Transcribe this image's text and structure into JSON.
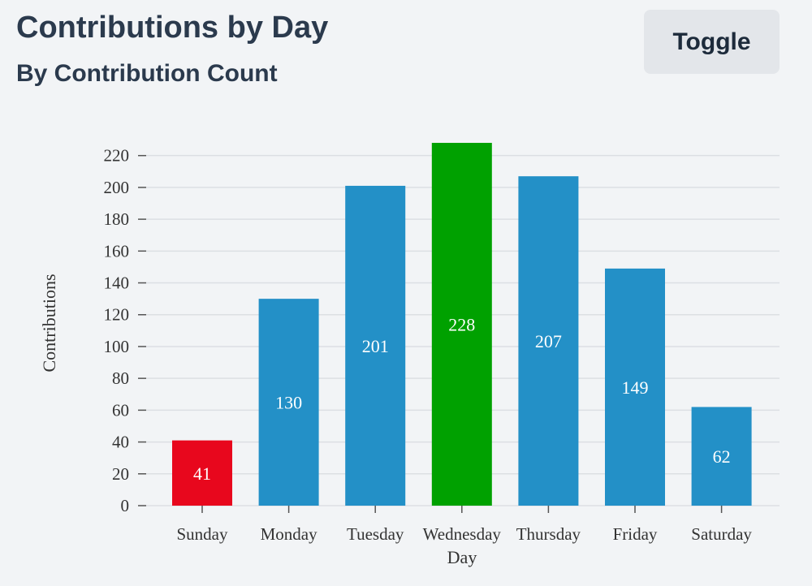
{
  "header": {
    "title": "Contributions by Day",
    "subtitle": "By Contribution Count",
    "toggle_label": "Toggle"
  },
  "colors": {
    "default_bar": "#2390c7",
    "min_bar": "#e8071d",
    "max_bar": "#00a100",
    "grid": "#dcdfe3",
    "axis": "#555555"
  },
  "chart_data": {
    "type": "bar",
    "categories": [
      "Sunday",
      "Monday",
      "Tuesday",
      "Wednesday",
      "Thursday",
      "Friday",
      "Saturday"
    ],
    "values": [
      41,
      130,
      201,
      228,
      207,
      149,
      62
    ],
    "xlabel": "Day",
    "ylabel": "Contributions",
    "ylim": [
      0,
      228
    ],
    "yticks": [
      0,
      20,
      40,
      60,
      80,
      100,
      120,
      140,
      160,
      180,
      200,
      220
    ],
    "grid": true,
    "data_labels": true,
    "highlight": {
      "min": "Sunday",
      "max": "Wednesday"
    }
  }
}
